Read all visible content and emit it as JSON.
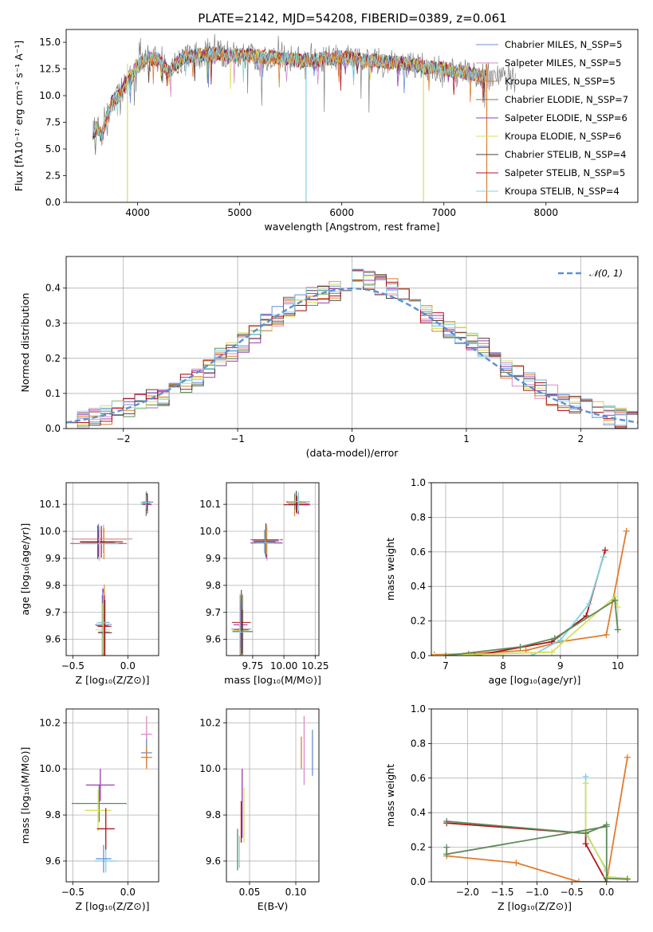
{
  "figure": {
    "title": "PLATE=2142, MJD=54208, FIBERID=0389, z=0.061"
  },
  "colors": {
    "series": [
      "#6b8ed6",
      "#d98ac6",
      "#e07c2f",
      "#5e8a5a",
      "#9a3ab0",
      "#d7df5e",
      "#5a3b3b",
      "#b0141b",
      "#7fd3e3"
    ],
    "data": "#808080",
    "gauss": "#5b8fd6",
    "grid": "#b0b0b0"
  },
  "chart_data": [
    {
      "id": "spectrum",
      "type": "line",
      "xlabel": "wavelength [Angstrom, rest frame]",
      "ylabel": "Flux [fλ10⁻¹⁷ erg cm⁻² s⁻¹ A⁻¹]",
      "xlim": [
        3300,
        8900
      ],
      "ylim": [
        0,
        16.2
      ],
      "xticks": [
        4000,
        5000,
        6000,
        7000,
        8000
      ],
      "yticks": [
        0.0,
        2.5,
        5.0,
        7.5,
        10.0,
        12.5,
        15.0
      ],
      "grid": false,
      "legend_position": "top-right",
      "legend": [
        "Chabrier MILES, N_SSP=5",
        "Salpeter MILES, N_SSP=5",
        "Kroupa MILES, N_SSP=5",
        "Chabrier ELODIE, N_SSP=7",
        "Salpeter ELODIE, N_SSP=6",
        "Kroupa ELODIE, N_SSP=6",
        "Chabrier STELIB, N_SSP=4",
        "Salpeter STELIB, N_SSP=5",
        "Kroupa STELIB, N_SSP=4"
      ],
      "data_curve": {
        "x": [
          3560,
          3600,
          3650,
          3700,
          3750,
          3800,
          3850,
          3900,
          3950,
          4000,
          4100,
          4200,
          4300,
          4400,
          4500,
          4600,
          4700,
          4800,
          4900,
          5000,
          5200,
          5400,
          5600,
          5800,
          6000,
          6200,
          6400,
          6600,
          6800,
          7000,
          7200,
          7400,
          7600,
          7700
        ],
        "y": [
          6.5,
          7.0,
          6.2,
          8.0,
          9.5,
          9.8,
          10.5,
          11.5,
          12.0,
          12.8,
          13.5,
          13.4,
          12.2,
          13.2,
          13.7,
          13.8,
          13.9,
          14.0,
          13.8,
          13.8,
          13.7,
          13.5,
          13.3,
          13.4,
          13.6,
          13.3,
          13.2,
          13.0,
          12.7,
          12.5,
          12.2,
          11.8,
          11.7,
          11.5
        ]
      },
      "model_xrange": [
        3560,
        7420
      ],
      "spikes_x": [
        3900,
        5650,
        6800,
        7420
      ]
    },
    {
      "id": "residuals",
      "type": "histogram",
      "xlabel": "(data-model)/error",
      "ylabel": "Normed distribution",
      "xlim": [
        -2.5,
        2.5
      ],
      "ylim": [
        0,
        0.49
      ],
      "xticks": [
        -2,
        -1,
        0,
        1,
        2
      ],
      "yticks": [
        0.0,
        0.1,
        0.2,
        0.3,
        0.4
      ],
      "grid": true,
      "legend_position": "top-right",
      "legend": [
        "𝒩(0, 1)"
      ],
      "bin_edges": [
        -2.5,
        -2.4,
        -2.3,
        -2.2,
        -2.1,
        -2.0,
        -1.9,
        -1.8,
        -1.7,
        -1.6,
        -1.5,
        -1.4,
        -1.3,
        -1.2,
        -1.1,
        -1.0,
        -0.9,
        -0.8,
        -0.7,
        -0.6,
        -0.5,
        -0.4,
        -0.3,
        -0.2,
        -0.1,
        0.0,
        0.1,
        0.2,
        0.3,
        0.4,
        0.5,
        0.6,
        0.7,
        0.8,
        0.9,
        1.0,
        1.1,
        1.2,
        1.3,
        1.4,
        1.5,
        1.6,
        1.7,
        1.8,
        1.9,
        2.0,
        2.1,
        2.2,
        2.3,
        2.4,
        2.5
      ],
      "base_values": [
        0.025,
        0.03,
        0.035,
        0.04,
        0.05,
        0.06,
        0.07,
        0.085,
        0.095,
        0.11,
        0.13,
        0.15,
        0.17,
        0.2,
        0.22,
        0.245,
        0.27,
        0.3,
        0.32,
        0.345,
        0.36,
        0.375,
        0.385,
        0.39,
        0.41,
        0.43,
        0.42,
        0.41,
        0.4,
        0.38,
        0.36,
        0.33,
        0.3,
        0.28,
        0.26,
        0.245,
        0.23,
        0.2,
        0.17,
        0.15,
        0.13,
        0.11,
        0.095,
        0.08,
        0.07,
        0.06,
        0.05,
        0.04,
        0.03,
        0.025
      ]
    },
    {
      "id": "z-age",
      "type": "errorbar",
      "xlabel": "Z [log₁₀(Z/Z⊙)]",
      "ylabel": "age  [log₁₀(age/yr)]",
      "xlim": [
        -0.56,
        0.28
      ],
      "ylim": [
        9.54,
        10.18
      ],
      "xticks": [
        -0.5,
        0.0
      ],
      "xticklabels": [
        "−0.5",
        "0.0"
      ],
      "yticks": [
        9.6,
        9.7,
        9.8,
        9.9,
        10.0,
        10.1
      ],
      "grid": true,
      "groups": [
        {
          "x": -0.26,
          "y": 9.963,
          "xerr": 0.25,
          "yerr": 0.06
        },
        {
          "x": -0.22,
          "y": 9.645,
          "xerr": 0.07,
          "yerr": 0.13
        },
        {
          "x": 0.17,
          "y": 10.105,
          "xerr": 0.05,
          "yerr": 0.04
        }
      ]
    },
    {
      "id": "mass-age",
      "type": "errorbar",
      "xlabel": "mass [log₁₀(M/M⊙)]",
      "ylabel": "",
      "xlim": [
        9.54,
        10.28
      ],
      "ylim": [
        9.54,
        10.18
      ],
      "xticks": [
        9.75,
        10.0,
        10.25
      ],
      "xticklabels": [
        "9.75",
        "10.00",
        "10.25"
      ],
      "yticks": [
        9.6,
        9.7,
        9.8,
        9.9,
        10.0,
        10.1
      ],
      "grid": true,
      "groups": [
        {
          "x": 9.86,
          "y": 9.963,
          "xerr": 0.12,
          "yerr": 0.06
        },
        {
          "x": 9.66,
          "y": 9.645,
          "xerr": 0.08,
          "yerr": 0.13
        },
        {
          "x": 10.1,
          "y": 10.105,
          "xerr": 0.1,
          "yerr": 0.04
        }
      ]
    },
    {
      "id": "age-weight",
      "type": "line",
      "xlabel": "age  [log₁₀(age/yr)]",
      "ylabel": "mass weight",
      "xlim": [
        6.75,
        10.35
      ],
      "ylim": [
        0,
        1.0
      ],
      "xticks": [
        7,
        8,
        9,
        10
      ],
      "yticks": [
        0.0,
        0.2,
        0.4,
        0.6,
        0.8,
        1.0
      ],
      "grid": true,
      "series": [
        {
          "x": [
            6.8,
            7.4,
            8.4,
            9.0,
            9.8,
            10.15
          ],
          "y": [
            0.005,
            0.01,
            0.03,
            0.08,
            0.12,
            0.72
          ]
        },
        {
          "x": [
            7.5,
            8.85,
            9.45,
            9.78
          ],
          "y": [
            0.0,
            0.08,
            0.23,
            0.61
          ]
        },
        {
          "x": [
            8.5,
            9.0,
            9.5,
            9.75
          ],
          "y": [
            0.0,
            0.09,
            0.3,
            0.57
          ]
        },
        {
          "x": [
            6.8,
            8.85,
            9.95,
            10.0
          ],
          "y": [
            0.0,
            0.02,
            0.34,
            0.28
          ]
        },
        {
          "x": [
            7.0,
            8.3,
            8.9,
            9.95,
            10.0
          ],
          "y": [
            0.0,
            0.05,
            0.1,
            0.32,
            0.15
          ]
        }
      ]
    },
    {
      "id": "z-mass",
      "type": "errorbar",
      "xlabel": "Z [log₁₀(Z/Z⊙)]",
      "ylabel": "mass [log₁₀(M/M⊙)]",
      "xlim": [
        -0.56,
        0.28
      ],
      "ylim": [
        9.51,
        10.26
      ],
      "xticks": [
        -0.5,
        0.0
      ],
      "xticklabels": [
        "−0.5",
        "0.0"
      ],
      "yticks": [
        9.6,
        9.8,
        10.0,
        10.2
      ],
      "grid": true,
      "points": [
        {
          "x": -0.26,
          "y": 9.85,
          "xerr": 0.25,
          "yerr": 0.08,
          "c": 3
        },
        {
          "x": -0.25,
          "y": 9.93,
          "xerr": 0.13,
          "yerr": 0.07,
          "c": 4
        },
        {
          "x": -0.27,
          "y": 9.82,
          "xerr": 0.12,
          "yerr": 0.09,
          "c": 5
        },
        {
          "x": -0.2,
          "y": 9.6,
          "xerr": 0.1,
          "yerr": 0.05,
          "c": 8
        },
        {
          "x": -0.22,
          "y": 9.61,
          "xerr": 0.07,
          "yerr": 0.06,
          "c": 0
        },
        {
          "x": -0.2,
          "y": 9.74,
          "xerr": 0.08,
          "yerr": 0.09,
          "c": 7
        },
        {
          "x": 0.17,
          "y": 10.15,
          "xerr": 0.05,
          "yerr": 0.08,
          "c": 1
        },
        {
          "x": 0.17,
          "y": 10.07,
          "xerr": 0.05,
          "yerr": 0.06,
          "c": 0
        },
        {
          "x": 0.17,
          "y": 10.05,
          "xerr": 0.05,
          "yerr": 0.05,
          "c": 2
        }
      ]
    },
    {
      "id": "ebv-mass",
      "type": "errorbar",
      "xlabel": "E(B-V)",
      "ylabel": "",
      "xlim": [
        0.025,
        0.125
      ],
      "ylim": [
        9.51,
        10.26
      ],
      "xticks": [
        0.05,
        0.1
      ],
      "xticklabels": [
        "0.05",
        "0.10"
      ],
      "yticks": [
        9.6,
        9.8,
        10.0,
        10.2
      ],
      "grid": true,
      "points": [
        {
          "x": 0.037,
          "y": 9.65,
          "yerr": 0.09,
          "c": 3
        },
        {
          "x": 0.039,
          "y": 9.64,
          "yerr": 0.07,
          "c": 8
        },
        {
          "x": 0.041,
          "y": 9.77,
          "yerr": 0.09,
          "c": 7
        },
        {
          "x": 0.042,
          "y": 9.85,
          "yerr": 0.15,
          "c": 4
        },
        {
          "x": 0.044,
          "y": 9.8,
          "yerr": 0.12,
          "c": 5
        },
        {
          "x": 0.106,
          "y": 10.07,
          "yerr": 0.07,
          "c": 2
        },
        {
          "x": 0.109,
          "y": 10.08,
          "yerr": 0.15,
          "c": 1
        },
        {
          "x": 0.118,
          "y": 10.07,
          "yerr": 0.1,
          "c": 0
        }
      ]
    },
    {
      "id": "z-weight",
      "type": "line",
      "xlabel": "Z [log₁₀(Z/Z⊙)]",
      "ylabel": "mass weight",
      "xlim": [
        -2.52,
        0.45
      ],
      "ylim": [
        0,
        1.0
      ],
      "xticks": [
        -2.0,
        -1.5,
        -1.0,
        -0.5,
        0.0
      ],
      "xticklabels": [
        "−2.0",
        "−1.5",
        "−1.0",
        "−0.5",
        "0.0"
      ],
      "yticks": [
        0.0,
        0.2,
        0.4,
        0.6,
        0.8,
        1.0
      ],
      "grid": true,
      "series": [
        {
          "x": [
            -2.3,
            -1.3,
            -0.4,
            0.0,
            0.3
          ],
          "y": [
            0.15,
            0.11,
            0.0,
            0.0,
            0.72
          ]
        },
        {
          "x": [
            -2.3,
            -0.3,
            -0.3,
            0.0
          ],
          "y": [
            0.34,
            0.28,
            0.22,
            0.0
          ]
        },
        {
          "x": [
            -0.3,
            -0.3,
            0.0
          ],
          "y": [
            0.61,
            0.28,
            0.07
          ]
        },
        {
          "x": [
            -0.3,
            -0.3,
            0.0,
            0.0,
            0.3
          ],
          "y": [
            0.57,
            0.29,
            0.06,
            0.03,
            0.02
          ]
        },
        {
          "x": [
            -2.3,
            -0.3,
            0.0
          ],
          "y": [
            0.35,
            0.28,
            0.33
          ]
        },
        {
          "x": [
            -2.3,
            -2.3,
            0.0,
            0.0,
            0.3
          ],
          "y": [
            0.2,
            0.16,
            0.32,
            0.02,
            0.015
          ]
        }
      ]
    }
  ]
}
